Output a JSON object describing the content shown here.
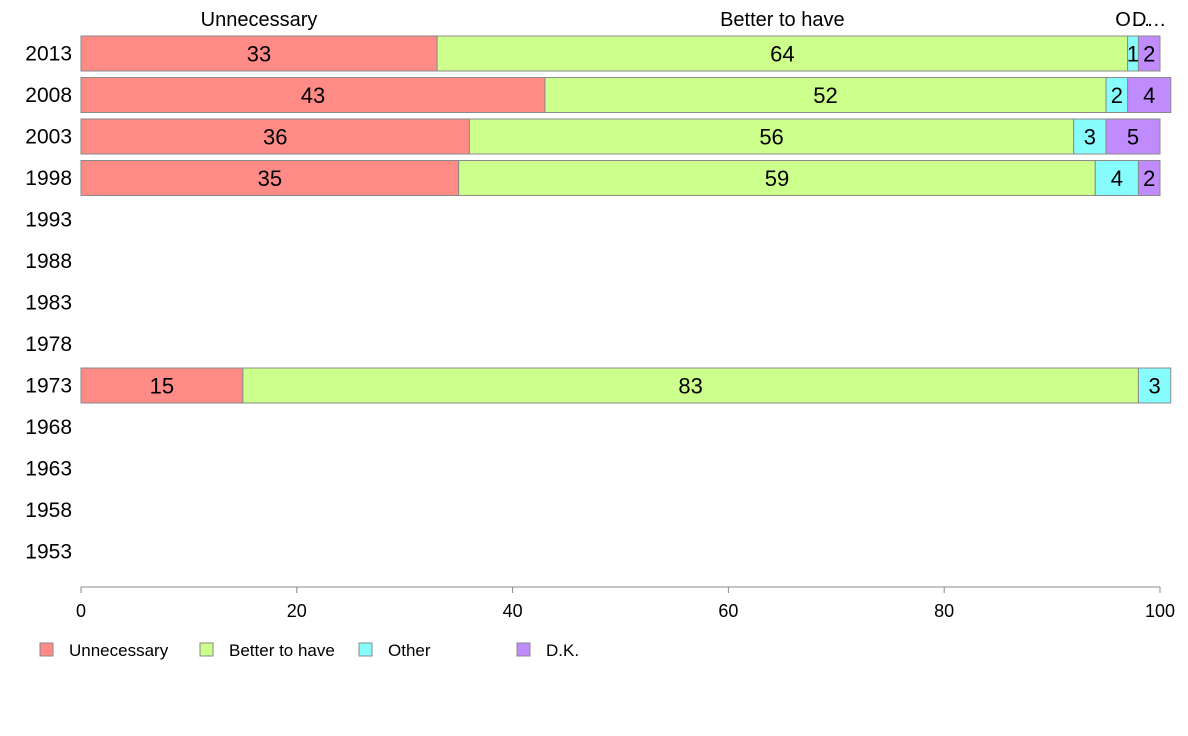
{
  "chart_data": {
    "type": "bar",
    "orientation": "horizontal",
    "stacked": true,
    "categories": [
      "2013",
      "2008",
      "2003",
      "1998",
      "1993",
      "1988",
      "1983",
      "1978",
      "1973",
      "1968",
      "1963",
      "1958",
      "1953"
    ],
    "series": [
      {
        "name": "Unnecessary",
        "color": "#ff8b87",
        "values": [
          33,
          43,
          36,
          35,
          null,
          null,
          null,
          null,
          15,
          null,
          null,
          null,
          null
        ]
      },
      {
        "name": "Better to have",
        "color": "#ccff8b",
        "values": [
          64,
          52,
          56,
          59,
          null,
          null,
          null,
          null,
          83,
          null,
          null,
          null,
          null
        ]
      },
      {
        "name": "Other",
        "color": "#87fcfc",
        "values": [
          1,
          2,
          3,
          4,
          null,
          null,
          null,
          null,
          3,
          null,
          null,
          null,
          null
        ]
      },
      {
        "name": "D.K.",
        "color": "#c08bfc",
        "values": [
          2,
          4,
          5,
          2,
          null,
          null,
          null,
          null,
          null,
          null,
          null,
          null,
          null
        ]
      }
    ],
    "column_headers": [
      "Unnecessary",
      "Better to have",
      "O…",
      "D…"
    ],
    "xlim": [
      0,
      100
    ],
    "xticks": [
      0,
      20,
      40,
      60,
      80,
      100
    ],
    "grid": false,
    "legend_position": "bottom"
  }
}
